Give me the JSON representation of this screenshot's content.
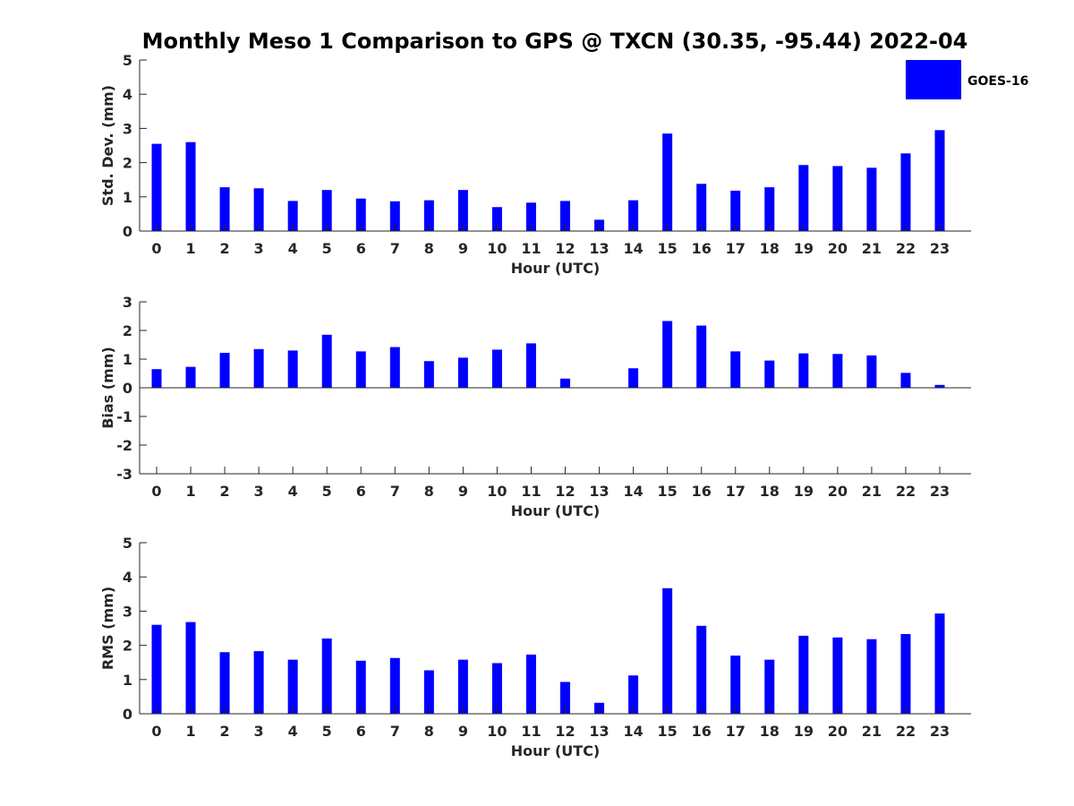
{
  "chart_data": {
    "type": "bar",
    "title": "Monthly Meso 1 Comparison to GPS @ TXCN (30.35, -95.44) 2022-04",
    "legend": {
      "label": "GOES-16",
      "color": "#0000ff",
      "position": "top-right"
    },
    "bar_color": "#0000ff",
    "categories": [
      "0",
      "1",
      "2",
      "3",
      "4",
      "5",
      "6",
      "7",
      "8",
      "9",
      "10",
      "11",
      "12",
      "13",
      "14",
      "15",
      "16",
      "17",
      "18",
      "19",
      "20",
      "21",
      "22",
      "23"
    ],
    "panels": [
      {
        "ylabel": "Std. Dev. (mm)",
        "xlabel": "Hour (UTC)",
        "ylim": [
          0,
          5
        ],
        "yticks": [
          0,
          1,
          2,
          3,
          4,
          5
        ],
        "values": [
          2.55,
          2.6,
          1.28,
          1.25,
          0.88,
          1.2,
          0.95,
          0.87,
          0.9,
          1.2,
          0.7,
          0.83,
          0.88,
          0.33,
          0.9,
          2.85,
          1.38,
          1.18,
          1.28,
          1.93,
          1.9,
          1.85,
          2.27,
          2.95
        ]
      },
      {
        "ylabel": "Bias (mm)",
        "xlabel": "Hour (UTC)",
        "ylim": [
          -3,
          3
        ],
        "yticks": [
          -3,
          -2,
          -1,
          0,
          1,
          2,
          3
        ],
        "values": [
          0.65,
          0.73,
          1.22,
          1.35,
          1.3,
          1.85,
          1.27,
          1.42,
          0.93,
          1.05,
          1.33,
          1.55,
          0.32,
          0,
          0.68,
          2.33,
          2.17,
          1.27,
          0.95,
          1.2,
          1.18,
          1.13,
          0.52,
          0.1
        ]
      },
      {
        "ylabel": "RMS (mm)",
        "xlabel": "Hour (UTC)",
        "ylim": [
          0,
          5
        ],
        "yticks": [
          0,
          1,
          2,
          3,
          4,
          5
        ],
        "values": [
          2.6,
          2.68,
          1.8,
          1.83,
          1.58,
          2.2,
          1.55,
          1.63,
          1.27,
          1.58,
          1.48,
          1.73,
          0.93,
          0.32,
          1.12,
          3.67,
          2.57,
          1.7,
          1.58,
          2.28,
          2.23,
          2.18,
          2.33,
          2.93
        ]
      }
    ]
  }
}
